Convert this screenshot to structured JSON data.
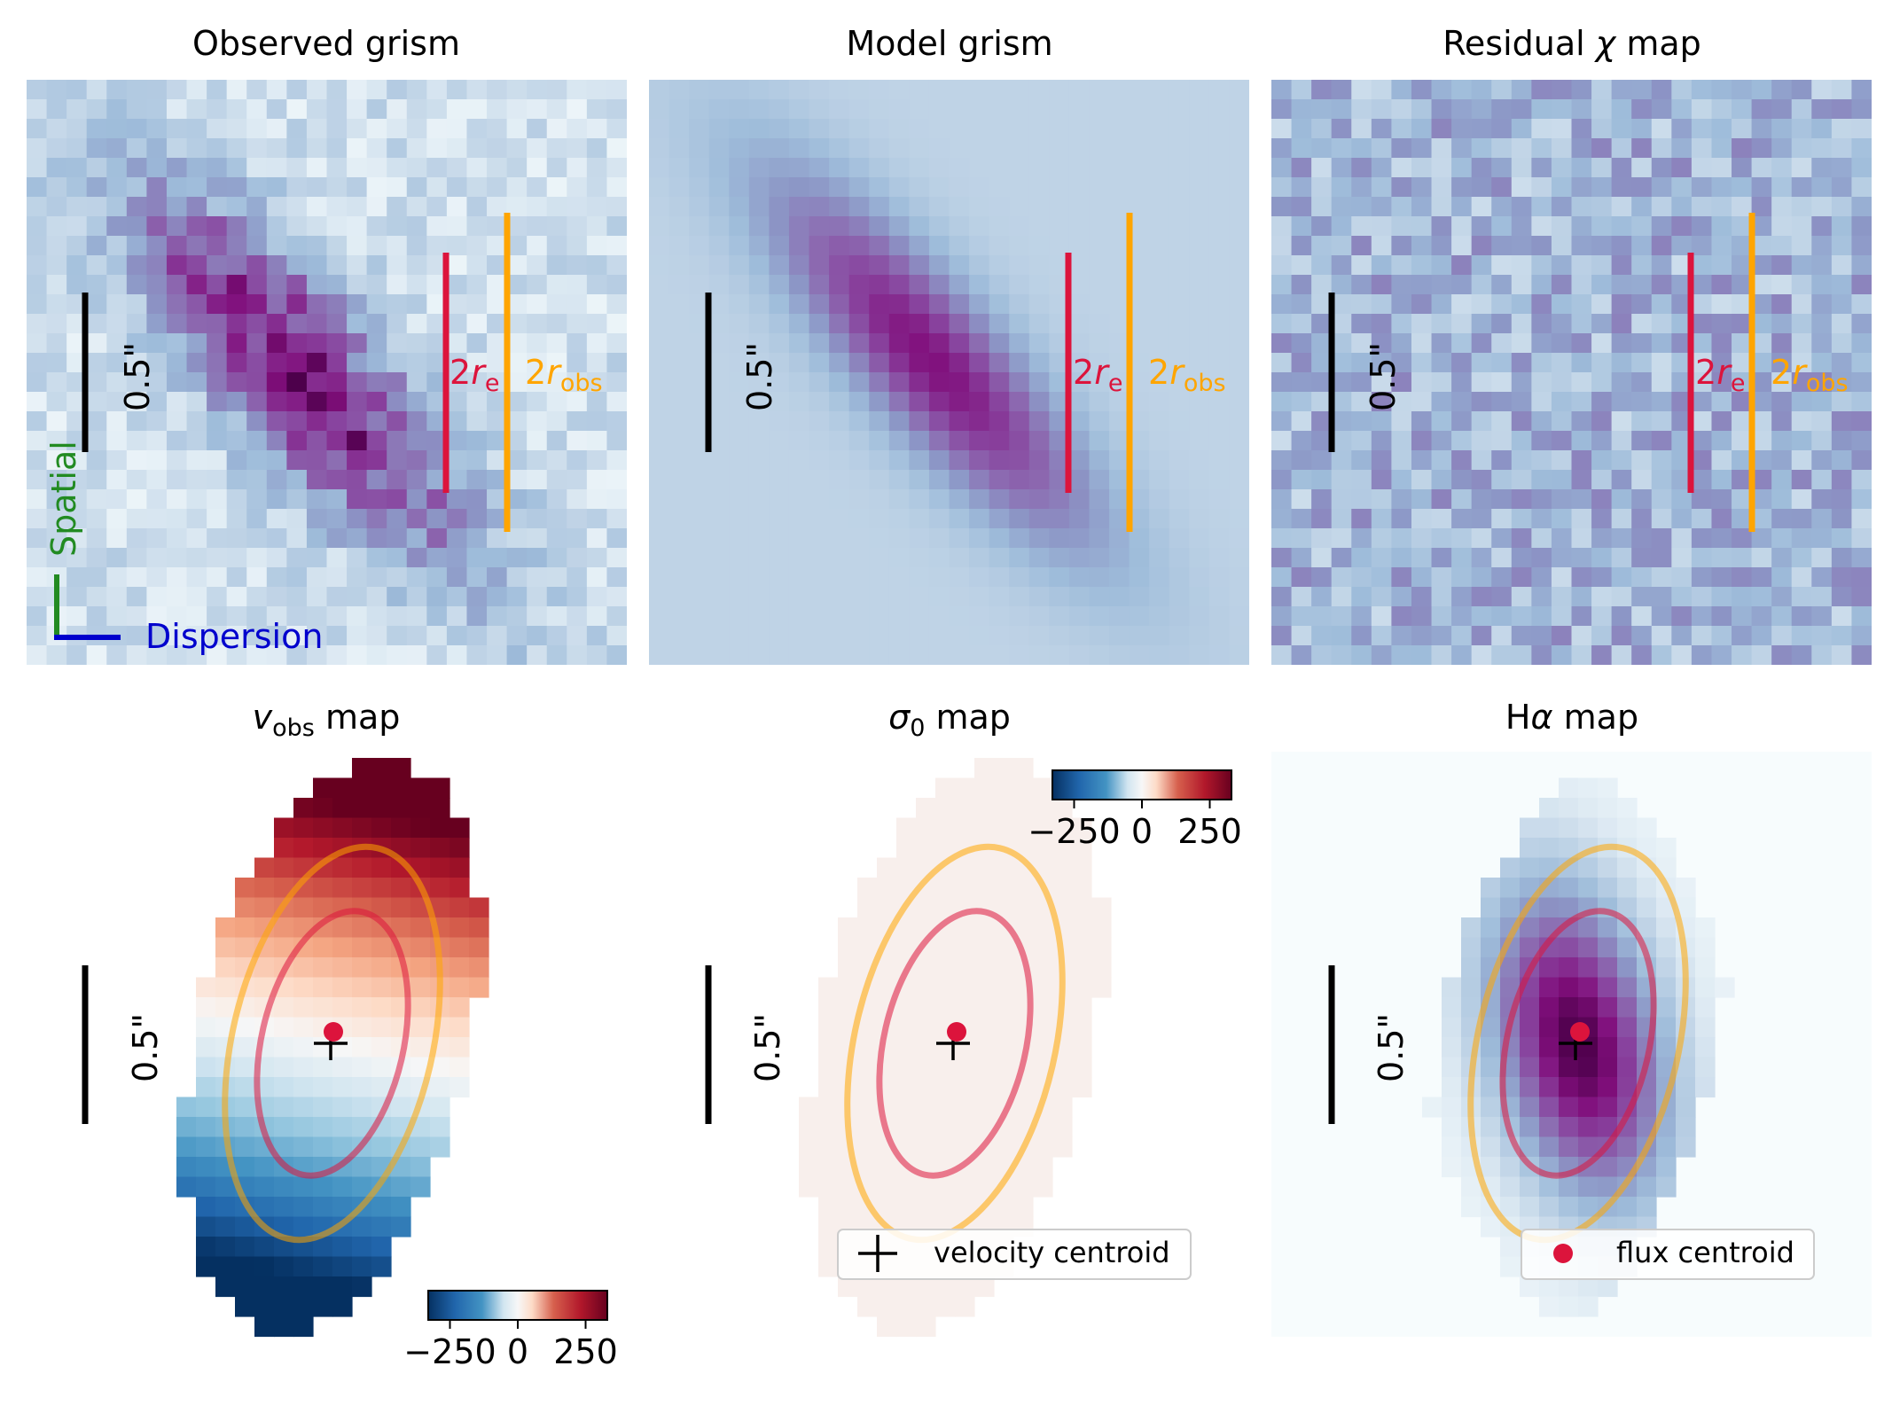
{
  "colors": {
    "bupu_light": "#e4ecf4",
    "bupu_mid": "#9ebcda",
    "bupu_dark": "#6a1a70",
    "crimson": "#dc143c",
    "orange": "#ffa500",
    "spatial_green": "#228b22",
    "dispersion_blue": "#0000cd",
    "text": "#000000"
  },
  "panels": {
    "observed": {
      "title": "Observed grism"
    },
    "model": {
      "title": "Model grism"
    },
    "residual": {
      "title_main": "Residual ",
      "title_symbol": "χ",
      "title_end": " map"
    },
    "vobs": {
      "title_v": "v",
      "title_sub": "obs",
      "title_end": " map"
    },
    "sigma": {
      "title_sym": "σ",
      "title_sub": "0",
      "title_end": " map"
    },
    "halpha": {
      "title_main": "H",
      "title_sym": "α",
      "title_end": " map"
    }
  },
  "annotations": {
    "scalebar_label": "0.5\"",
    "re_label_2": "2",
    "re_label_r": "r",
    "re_label_sub": "e",
    "robs_label_2": "2",
    "robs_label_r": "r",
    "robs_label_sub": "obs",
    "spatial_label": "Spatial",
    "dispersion_label": "Dispersion"
  },
  "colorbar": {
    "ticks": [
      "−250",
      "0",
      "250"
    ],
    "values": [
      -250,
      0,
      250
    ],
    "range": [
      -330,
      330
    ]
  },
  "legends": {
    "velocity_centroid": "velocity centroid",
    "flux_centroid": "flux centroid"
  },
  "chart_data": [
    {
      "type": "heatmap",
      "title": "Observed grism",
      "colormap": "BuPu",
      "grid": "30x30 pixels",
      "features": [
        "elongated emission tilted ~45°",
        "scale bar 0.5\"",
        "2r_e line",
        "2r_obs line",
        "Spatial / Dispersion axes"
      ]
    },
    {
      "type": "heatmap",
      "title": "Model grism",
      "colormap": "BuPu",
      "grid": "30x30 pixels",
      "features": [
        "smooth elongated model emission",
        "scale bar 0.5\"",
        "2r_e line",
        "2r_obs line"
      ]
    },
    {
      "type": "heatmap",
      "title": "Residual χ map",
      "colormap": "BuPu",
      "grid": "30x30 pixels",
      "features": [
        "noise-like residuals",
        "scale bar 0.5\"",
        "2r_e line",
        "2r_obs line"
      ]
    },
    {
      "type": "heatmap",
      "title": "v_obs map",
      "colormap": "RdBu_r",
      "colorbar_ticks": [
        -250,
        0,
        250
      ],
      "features": [
        "positive velocities top, negative bottom",
        "r_e ellipse",
        "r_obs ellipse",
        "velocity centroid",
        "flux centroid"
      ]
    },
    {
      "type": "heatmap",
      "title": "σ0 map",
      "colormap": "RdBu_r",
      "colorbar_ticks": [
        -250,
        0,
        250
      ],
      "features": [
        "near-uniform low dispersion",
        "r_e ellipse",
        "r_obs ellipse",
        "velocity centroid",
        "flux centroid"
      ]
    },
    {
      "type": "heatmap",
      "title": "Hα map",
      "colormap": "BuPu",
      "features": [
        "centrally concentrated emission",
        "r_e ellipse",
        "r_obs ellipse",
        "velocity centroid",
        "flux centroid"
      ]
    }
  ]
}
